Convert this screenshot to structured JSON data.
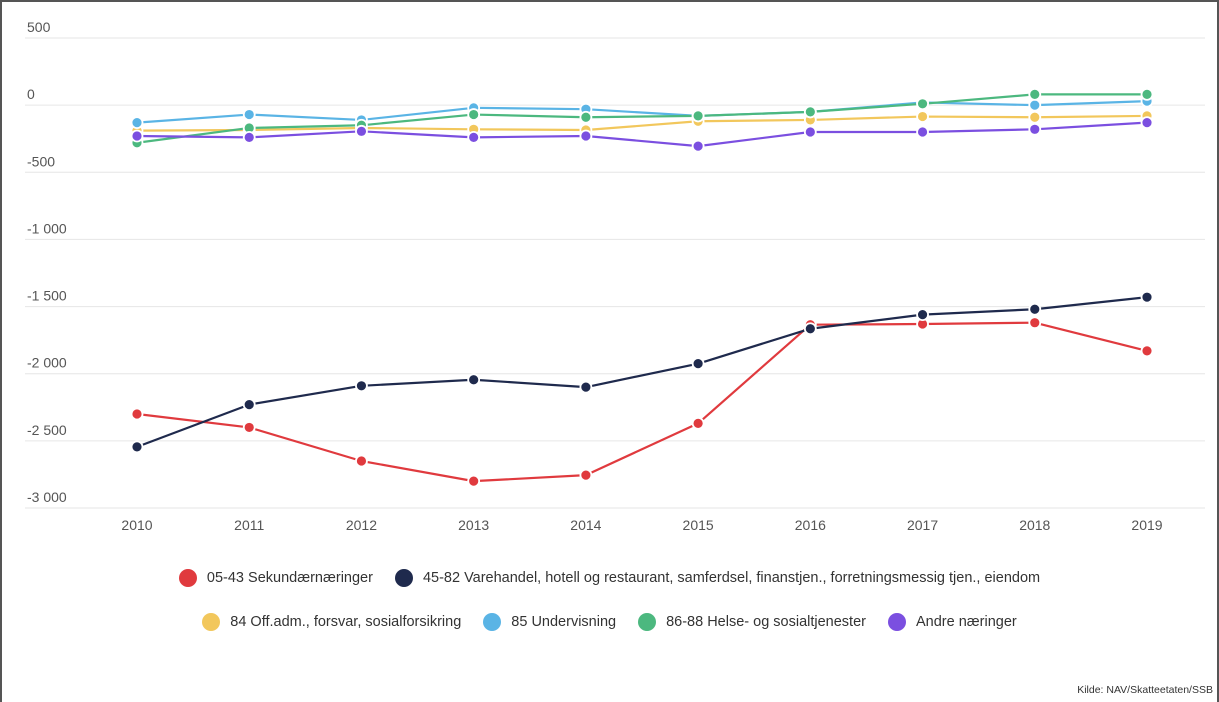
{
  "chart_data": {
    "type": "line",
    "title": "",
    "xlabel": "",
    "ylabel": "",
    "x": [
      "2010",
      "2011",
      "2012",
      "2013",
      "2014",
      "2015",
      "2016",
      "2017",
      "2018",
      "2019"
    ],
    "ylim": [
      -3000,
      500
    ],
    "yticks": [
      500,
      0,
      -500,
      -1000,
      -1500,
      -2000,
      -2500,
      -3000
    ],
    "ytick_labels": [
      "500",
      "0",
      "-500",
      "-1 000",
      "-1 500",
      "-2 000",
      "-2 500",
      "-3 000"
    ],
    "grid": true,
    "legend_position": "bottom",
    "series": [
      {
        "name": "05-43 Sekundærnæringer",
        "color": "#e03a3e",
        "values": [
          -2300,
          -2400,
          -2650,
          -2800,
          -2755,
          -2370,
          -1635,
          -1630,
          -1620,
          -1830
        ]
      },
      {
        "name": "45-82 Varehandel, hotell og restaurant, samferdsel, finanstjen., forretningsmessig tjen., eiendom",
        "color": "#1f2a4d",
        "values": [
          -2545,
          -2230,
          -2090,
          -2045,
          -2100,
          -1925,
          -1665,
          -1560,
          -1520,
          -1430
        ]
      },
      {
        "name": "84 Off.adm., forsvar, sosialforsikring",
        "color": "#f2c75c",
        "values": [
          -190,
          -185,
          -170,
          -180,
          -185,
          -120,
          -110,
          -85,
          -90,
          -80
        ]
      },
      {
        "name": "85 Undervisning",
        "color": "#5ab4e5",
        "values": [
          -130,
          -70,
          -110,
          -20,
          -30,
          -80,
          -50,
          20,
          0,
          30
        ]
      },
      {
        "name": "86-88 Helse- og sosialtjenester",
        "color": "#4cb87f",
        "values": [
          -280,
          -170,
          -150,
          -70,
          -90,
          -80,
          -50,
          10,
          80,
          80
        ]
      },
      {
        "name": "Andre næringer",
        "color": "#7b4fe0",
        "values": [
          -230,
          -240,
          -195,
          -240,
          -230,
          -305,
          -200,
          -200,
          -180,
          -130
        ]
      }
    ]
  },
  "source_text": "Kilde: NAV/Skatteetaten/SSB"
}
